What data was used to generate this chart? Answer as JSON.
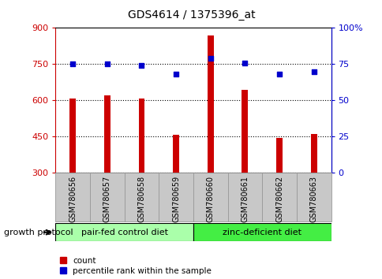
{
  "title": "GDS4614 / 1375396_at",
  "samples": [
    "GSM780656",
    "GSM780657",
    "GSM780658",
    "GSM780659",
    "GSM780660",
    "GSM780661",
    "GSM780662",
    "GSM780663"
  ],
  "counts": [
    608,
    620,
    608,
    458,
    870,
    645,
    445,
    460
  ],
  "percentile": [
    75,
    75,
    74,
    68,
    79,
    76,
    68,
    70
  ],
  "ylim_left": [
    300,
    900
  ],
  "ylim_right": [
    0,
    100
  ],
  "yticks_left": [
    300,
    450,
    600,
    750,
    900
  ],
  "yticks_right": [
    0,
    25,
    50,
    75,
    100
  ],
  "ytick_labels_right": [
    "0",
    "25",
    "50",
    "75",
    "100%"
  ],
  "group1_label": "pair-fed control diet",
  "group2_label": "zinc-deficient diet",
  "group1_color": "#aaffaa",
  "group2_color": "#44ee44",
  "bar_color": "#CC0000",
  "dot_color": "#0000CC",
  "bar_width": 0.18,
  "protocol_label": "growth protocol",
  "legend_count": "count",
  "legend_pct": "percentile rank within the sample",
  "title_color": "#000000",
  "left_axis_color": "#CC0000",
  "right_axis_color": "#0000CC",
  "grid_color": "#000000",
  "tick_label_bg": "#C8C8C8"
}
